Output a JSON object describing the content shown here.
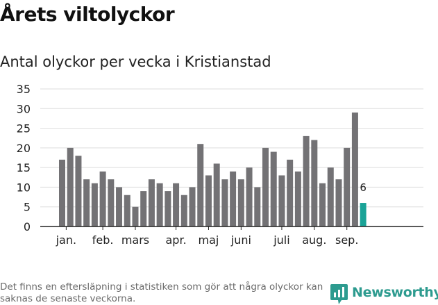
{
  "header": {
    "title": "Årets viltolyckor",
    "subtitle": "Antal olyckor per vecka i Kristianstad"
  },
  "footer": {
    "note": "Det finns en eftersläpning i statistiken som gör att några olyckor kan saknas de senaste veckorna.",
    "brand": "Newsworthy"
  },
  "colors": {
    "bar": "#737275",
    "highlight": "#1aa397",
    "brand": "#2d9b8f",
    "grid": "#dddddd",
    "axis": "#222222"
  },
  "chart_data": {
    "type": "bar",
    "title": "",
    "xlabel": "",
    "ylabel": "",
    "ylim": [
      0,
      35
    ],
    "yticks": [
      0,
      5,
      10,
      15,
      20,
      25,
      30,
      35
    ],
    "grid": true,
    "values": [
      17,
      20,
      18,
      12,
      11,
      14,
      12,
      10,
      8,
      5,
      9,
      12,
      11,
      9,
      11,
      8,
      10,
      21,
      13,
      16,
      12,
      14,
      12,
      15,
      10,
      20,
      19,
      13,
      17,
      14,
      23,
      22,
      11,
      15,
      12,
      20,
      29,
      6
    ],
    "highlight_index": 37,
    "highlight_label": "6",
    "month_labels": [
      {
        "label": "jan.",
        "index": 0.5
      },
      {
        "label": "feb.",
        "index": 5
      },
      {
        "label": "mars",
        "index": 9
      },
      {
        "label": "apr.",
        "index": 14
      },
      {
        "label": "maj",
        "index": 18
      },
      {
        "label": "juni",
        "index": 22
      },
      {
        "label": "juli",
        "index": 27
      },
      {
        "label": "aug.",
        "index": 31
      },
      {
        "label": "sep.",
        "index": 35
      }
    ]
  }
}
